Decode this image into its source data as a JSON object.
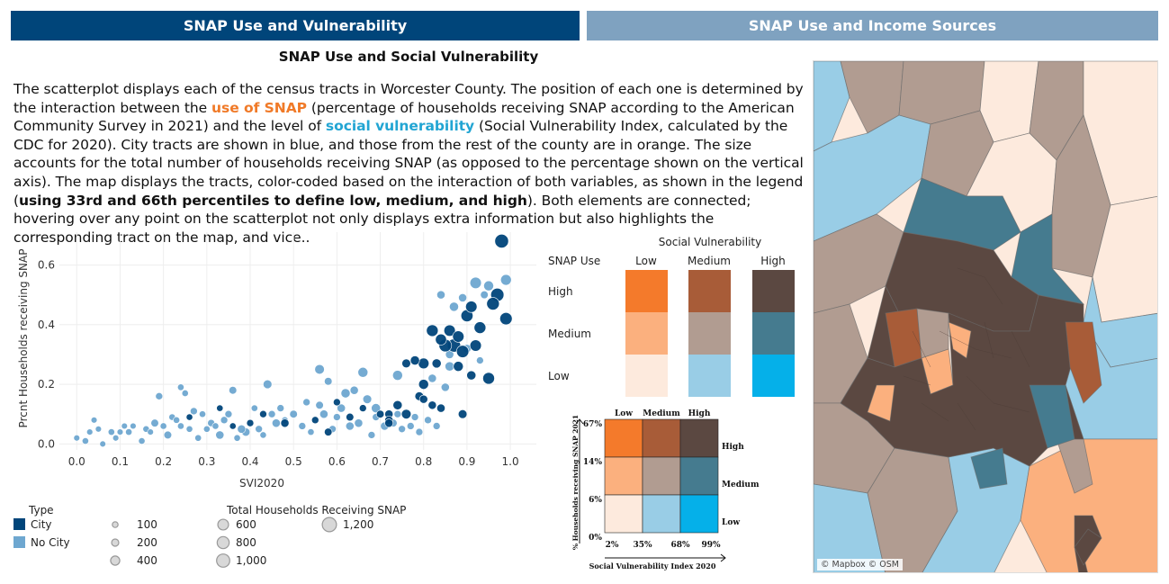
{
  "tabs": [
    {
      "label": "SNAP Use and Vulnerability",
      "active": true
    },
    {
      "label": "SNAP Use and Income Sources",
      "active": false
    }
  ],
  "section_title": "SNAP Use and Social Vulnerability",
  "description": {
    "p1": "The scatterplot displays each of the census tracts in Worcester County. The position of each one is determined by the interaction between the ",
    "use_of_snap": "use of SNAP",
    "p2": " (percentage of households receiving SNAP according to the American Community Survey in 2021) and the level of ",
    "social_vulnerability": "social vulnerability",
    "p3": " (Social Vulnerability Index, calculated by the CDC for 2020). City tracts are shown in blue, and those from the rest of the county are in orange. The size accounts for the total number of households receiving SNAP (as opposed to the percentage shown on the vertical axis). The map displays the tracts, color-coded based on the interaction of both variables, as shown in the legend (",
    "bold": "using 33rd and 66th percentiles to define low, medium, and high",
    "p4": "). Both elements are connected; hovering over any point on the scatterplot not only displays extra information but also highlights the corresponding tract on the map, and vice.."
  },
  "colors": {
    "city": "#00457a",
    "no_city": "#6ea7d0",
    "bivariate": {
      "high_low": "#f47a2b",
      "high_medium": "#a85c38",
      "high_high": "#5b4841",
      "medium_low": "#fbb07e",
      "medium_medium": "#b19c91",
      "medium_high": "#457b8f",
      "low_low": "#fdeadd",
      "low_medium": "#99cde6",
      "low_high": "#05b0e9"
    }
  },
  "chart_data": {
    "type": "scatter",
    "xlabel": "SVI2020",
    "ylabel": "Prcnt Households receiving SNAP",
    "xlim": [
      -0.04,
      1.06
    ],
    "ylim": [
      -0.02,
      0.71
    ],
    "xticks": [
      "0.0",
      "0.1",
      "0.2",
      "0.3",
      "0.4",
      "0.5",
      "0.6",
      "0.7",
      "0.8",
      "0.9",
      "1.0"
    ],
    "yticks": [
      "0.0",
      "0.2",
      "0.4",
      "0.6"
    ],
    "grid": true,
    "series": [
      {
        "name": "City",
        "points": [
          [
            0.98,
            0.68,
            1100
          ],
          [
            0.86,
            0.38,
            700
          ],
          [
            0.9,
            0.43,
            800
          ],
          [
            0.82,
            0.38,
            750
          ],
          [
            0.91,
            0.46,
            700
          ],
          [
            0.97,
            0.5,
            1000
          ],
          [
            0.96,
            0.47,
            900
          ],
          [
            0.99,
            0.42,
            850
          ],
          [
            0.93,
            0.39,
            750
          ],
          [
            0.88,
            0.36,
            700
          ],
          [
            0.87,
            0.33,
            1000
          ],
          [
            0.85,
            0.33,
            900
          ],
          [
            0.84,
            0.35,
            650
          ],
          [
            0.89,
            0.31,
            850
          ],
          [
            0.92,
            0.33,
            700
          ],
          [
            0.95,
            0.22,
            750
          ],
          [
            0.8,
            0.2,
            500
          ],
          [
            0.83,
            0.27,
            400
          ],
          [
            0.78,
            0.28,
            400
          ],
          [
            0.76,
            0.27,
            350
          ],
          [
            0.8,
            0.27,
            600
          ],
          [
            0.88,
            0.26,
            500
          ],
          [
            0.91,
            0.23,
            400
          ],
          [
            0.74,
            0.13,
            400
          ],
          [
            0.79,
            0.16,
            350
          ],
          [
            0.76,
            0.1,
            450
          ],
          [
            0.72,
            0.1,
            300
          ],
          [
            0.84,
            0.12,
            300
          ],
          [
            0.89,
            0.1,
            350
          ],
          [
            0.8,
            0.15,
            300
          ],
          [
            0.82,
            0.13,
            300
          ],
          [
            0.72,
            0.08,
            300
          ],
          [
            0.7,
            0.1,
            250
          ],
          [
            0.66,
            0.12,
            200
          ],
          [
            0.6,
            0.14,
            200
          ],
          [
            0.63,
            0.09,
            250
          ],
          [
            0.58,
            0.04,
            250
          ],
          [
            0.55,
            0.08,
            200
          ],
          [
            0.48,
            0.07,
            300
          ],
          [
            0.4,
            0.07,
            200
          ],
          [
            0.43,
            0.1,
            200
          ],
          [
            0.33,
            0.12,
            150
          ],
          [
            0.36,
            0.06,
            150
          ],
          [
            0.26,
            0.09,
            150
          ],
          [
            0.72,
            0.07,
            300
          ]
        ]
      },
      {
        "name": "No City",
        "points": [
          [
            0.99,
            0.55,
            600
          ],
          [
            0.92,
            0.54,
            700
          ],
          [
            0.95,
            0.53,
            500
          ],
          [
            0.84,
            0.5,
            300
          ],
          [
            0.89,
            0.49,
            300
          ],
          [
            0.87,
            0.46,
            400
          ],
          [
            0.94,
            0.5,
            250
          ],
          [
            0.86,
            0.26,
            400
          ],
          [
            0.82,
            0.22,
            300
          ],
          [
            0.86,
            0.3,
            300
          ],
          [
            0.93,
            0.28,
            200
          ],
          [
            0.9,
            0.32,
            300
          ],
          [
            0.74,
            0.23,
            500
          ],
          [
            0.66,
            0.24,
            500
          ],
          [
            0.56,
            0.25,
            450
          ],
          [
            0.44,
            0.2,
            350
          ],
          [
            0.36,
            0.18,
            250
          ],
          [
            0.19,
            0.16,
            200
          ],
          [
            0.24,
            0.19,
            150
          ],
          [
            0.25,
            0.17,
            150
          ],
          [
            0.58,
            0.21,
            250
          ],
          [
            0.64,
            0.18,
            300
          ],
          [
            0.62,
            0.17,
            400
          ],
          [
            0.67,
            0.15,
            350
          ],
          [
            0.69,
            0.12,
            400
          ],
          [
            0.61,
            0.12,
            300
          ],
          [
            0.57,
            0.1,
            300
          ],
          [
            0.53,
            0.14,
            200
          ],
          [
            0.46,
            0.07,
            300
          ],
          [
            0.39,
            0.04,
            300
          ],
          [
            0.33,
            0.03,
            300
          ],
          [
            0.31,
            0.07,
            200
          ],
          [
            0.27,
            0.11,
            200
          ],
          [
            0.21,
            0.03,
            250
          ],
          [
            0.18,
            0.07,
            250
          ],
          [
            0.12,
            0.04,
            150
          ],
          [
            0.16,
            0.05,
            150
          ],
          [
            0.08,
            0.04,
            150
          ],
          [
            0.05,
            0.05,
            120
          ],
          [
            0.02,
            0.01,
            150
          ],
          [
            0.1,
            0.04,
            120
          ],
          [
            0.0,
            0.02,
            120
          ],
          [
            0.04,
            0.08,
            120
          ],
          [
            0.03,
            0.04,
            120
          ],
          [
            0.15,
            0.01,
            150
          ],
          [
            0.2,
            0.06,
            150
          ],
          [
            0.3,
            0.05,
            150
          ],
          [
            0.34,
            0.08,
            200
          ],
          [
            0.38,
            0.05,
            300
          ],
          [
            0.42,
            0.05,
            200
          ],
          [
            0.47,
            0.12,
            200
          ],
          [
            0.5,
            0.1,
            250
          ],
          [
            0.52,
            0.06,
            200
          ],
          [
            0.59,
            0.05,
            200
          ],
          [
            0.63,
            0.06,
            300
          ],
          [
            0.65,
            0.07,
            300
          ],
          [
            0.68,
            0.03,
            200
          ],
          [
            0.71,
            0.06,
            300
          ],
          [
            0.73,
            0.07,
            250
          ],
          [
            0.75,
            0.05,
            200
          ],
          [
            0.77,
            0.06,
            200
          ],
          [
            0.79,
            0.04,
            200
          ],
          [
            0.81,
            0.08,
            200
          ],
          [
            0.83,
            0.06,
            200
          ],
          [
            0.09,
            0.02,
            120
          ],
          [
            0.11,
            0.06,
            120
          ],
          [
            0.13,
            0.06,
            120
          ],
          [
            0.22,
            0.09,
            150
          ],
          [
            0.28,
            0.02,
            150
          ],
          [
            0.35,
            0.1,
            200
          ],
          [
            0.24,
            0.06,
            150
          ],
          [
            0.06,
            0.0,
            120
          ],
          [
            0.17,
            0.04,
            120
          ],
          [
            0.29,
            0.1,
            150
          ],
          [
            0.41,
            0.12,
            150
          ],
          [
            0.45,
            0.1,
            200
          ],
          [
            0.54,
            0.04,
            150
          ],
          [
            0.43,
            0.03,
            150
          ],
          [
            0.37,
            0.02,
            150
          ],
          [
            0.32,
            0.06,
            150
          ],
          [
            0.26,
            0.05,
            150
          ],
          [
            0.23,
            0.08,
            150
          ],
          [
            0.48,
            0.08,
            150
          ],
          [
            0.6,
            0.09,
            200
          ],
          [
            0.56,
            0.13,
            250
          ],
          [
            0.69,
            0.09,
            200
          ],
          [
            0.74,
            0.1,
            200
          ],
          [
            0.78,
            0.09,
            200
          ],
          [
            0.85,
            0.19,
            300
          ]
        ]
      }
    ],
    "size_legend_title": "Total Households Receiving SNAP",
    "size_legend": [
      {
        "label": "100",
        "value": 100
      },
      {
        "label": "200",
        "value": 200
      },
      {
        "label": "400",
        "value": 400
      },
      {
        "label": "600",
        "value": 600
      },
      {
        "label": "800",
        "value": 800
      },
      {
        "label": "1,000",
        "value": 1000
      },
      {
        "label": "1,200",
        "value": 1200
      }
    ],
    "type_legend_title": "Type",
    "type_legend": [
      "City",
      "No City"
    ]
  },
  "bivariate_legend": {
    "title": "Social Vulnerability",
    "row_header": "SNAP Use",
    "columns": [
      "Low",
      "Medium",
      "High"
    ],
    "rows": [
      "High",
      "Medium",
      "Low"
    ]
  },
  "small_legend": {
    "columns": [
      "Low",
      "Medium",
      "High"
    ],
    "rows": [
      "High",
      "Medium",
      "Low"
    ],
    "y_ticks": [
      "67%",
      "14%",
      "6%",
      "0%"
    ],
    "x_ticks": [
      "2%",
      "35%",
      "68%",
      "99%"
    ],
    "ylabel": "% Households receiving SNAP 2021",
    "xlabel": "Social Vulnerability Index 2020"
  },
  "map": {
    "attribution": "© Mapbox © OSM"
  }
}
